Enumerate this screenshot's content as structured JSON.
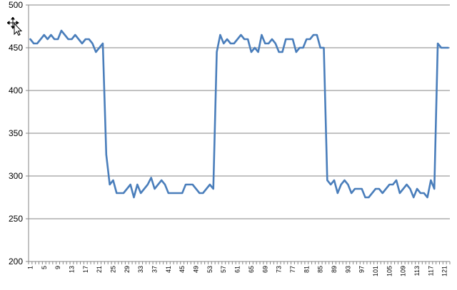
{
  "chart_data": {
    "type": "line",
    "title": "",
    "xlabel": "",
    "ylabel": "",
    "ylim": [
      200,
      500
    ],
    "yticks": [
      200,
      250,
      300,
      350,
      400,
      450,
      500
    ],
    "grid": "horizontal",
    "legend": "none",
    "x_tick_labels": [
      "1",
      "5",
      "9",
      "13",
      "17",
      "21",
      "25",
      "29",
      "33",
      "37",
      "41",
      "45",
      "49",
      "53",
      "57",
      "61",
      "65",
      "69",
      "73",
      "77",
      "81",
      "85",
      "89",
      "93",
      "97",
      "101",
      "105",
      "109",
      "113",
      "117",
      "121"
    ],
    "x_tick_labels_odd": true,
    "series": [
      {
        "color": "#4a7ebb",
        "x": [
          1,
          2,
          3,
          4,
          5,
          6,
          7,
          8,
          9,
          10,
          11,
          12,
          13,
          14,
          15,
          16,
          17,
          18,
          19,
          20,
          21,
          22,
          23,
          24,
          25,
          26,
          27,
          28,
          29,
          30,
          31,
          32,
          33,
          34,
          35,
          36,
          37,
          38,
          39,
          40,
          41,
          42,
          43,
          44,
          45,
          46,
          47,
          48,
          49,
          50,
          51,
          52,
          53,
          54,
          55,
          56,
          57,
          58,
          59,
          60,
          61,
          62,
          63,
          64,
          65,
          66,
          67,
          68,
          69,
          70,
          71,
          72,
          73,
          74,
          75,
          76,
          77,
          78,
          79,
          80,
          81,
          82,
          83,
          84,
          85,
          86,
          87,
          88,
          89,
          90,
          91,
          92,
          93,
          94,
          95,
          96,
          97,
          98,
          99,
          100,
          101,
          102,
          103,
          104,
          105,
          106,
          107,
          108,
          109,
          110,
          111,
          112,
          113,
          114,
          115,
          116,
          117,
          118,
          119,
          120,
          121,
          122
        ],
        "values": [
          460,
          455,
          455,
          460,
          465,
          460,
          465,
          460,
          460,
          470,
          465,
          460,
          460,
          465,
          460,
          455,
          460,
          460,
          455,
          445,
          450,
          455,
          325,
          290,
          295,
          280,
          280,
          280,
          285,
          290,
          275,
          290,
          280,
          285,
          290,
          298,
          285,
          290,
          295,
          290,
          280,
          280,
          280,
          280,
          280,
          290,
          290,
          290,
          285,
          280,
          280,
          285,
          290,
          285,
          445,
          465,
          455,
          460,
          455,
          455,
          460,
          465,
          460,
          460,
          445,
          450,
          445,
          465,
          455,
          455,
          460,
          455,
          445,
          445,
          460,
          460,
          460,
          445,
          450,
          450,
          460,
          460,
          465,
          465,
          450,
          450,
          295,
          290,
          295,
          280,
          290,
          295,
          290,
          280,
          285,
          285,
          285,
          275,
          275,
          280,
          285,
          285,
          280,
          285,
          290,
          290,
          295,
          280,
          285,
          290,
          285,
          275,
          285,
          280,
          280,
          275,
          295,
          285,
          455,
          450,
          450,
          450
        ]
      }
    ]
  },
  "overlay": {
    "cursor_icon": "move-cursor-icon"
  }
}
